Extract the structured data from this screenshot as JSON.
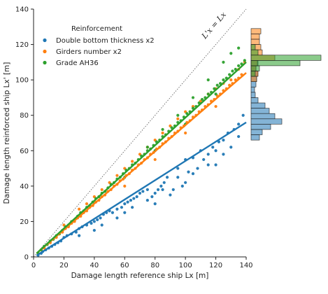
{
  "chart_data": {
    "type": "scatter",
    "xlabel": "Damage length reference ship Lx [m]",
    "ylabel": "Damage length reinforced ship Lx' [m]",
    "xlim": [
      0,
      140
    ],
    "ylim": [
      0,
      140
    ],
    "xticks": [
      "0",
      "20",
      "40",
      "60",
      "80",
      "100",
      "120",
      "140"
    ],
    "yticks": [
      "0",
      "20",
      "40",
      "60",
      "80",
      "100",
      "120",
      "140"
    ],
    "legend": {
      "title": "Reinforcement",
      "placement": "upper-left"
    },
    "annotation": "L'x = Lx",
    "identity_line": {
      "from": [
        0,
        0
      ],
      "to": [
        140,
        140
      ],
      "style": "dotted"
    },
    "series": [
      {
        "name": "Double bottom thickness x2",
        "color": "#1f77b4",
        "fit": [
          [
            2,
            0.8
          ],
          [
            140,
            76
          ]
        ],
        "points": [
          [
            3,
            1
          ],
          [
            5,
            2
          ],
          [
            6,
            3
          ],
          [
            8,
            4
          ],
          [
            10,
            5
          ],
          [
            12,
            6
          ],
          [
            14,
            7
          ],
          [
            16,
            8
          ],
          [
            18,
            9
          ],
          [
            20,
            11
          ],
          [
            22,
            12
          ],
          [
            25,
            13
          ],
          [
            28,
            14
          ],
          [
            30,
            16
          ],
          [
            32,
            17
          ],
          [
            35,
            18
          ],
          [
            38,
            19
          ],
          [
            40,
            20
          ],
          [
            42,
            21
          ],
          [
            44,
            22
          ],
          [
            46,
            24
          ],
          [
            48,
            25
          ],
          [
            50,
            26
          ],
          [
            52,
            25
          ],
          [
            55,
            27
          ],
          [
            58,
            28
          ],
          [
            60,
            30
          ],
          [
            62,
            31
          ],
          [
            64,
            32
          ],
          [
            66,
            33
          ],
          [
            68,
            34
          ],
          [
            70,
            36
          ],
          [
            72,
            37
          ],
          [
            75,
            38
          ],
          [
            78,
            34
          ],
          [
            80,
            36
          ],
          [
            82,
            38
          ],
          [
            84,
            40
          ],
          [
            86,
            42
          ],
          [
            88,
            45
          ],
          [
            90,
            35
          ],
          [
            92,
            38
          ],
          [
            95,
            50
          ],
          [
            98,
            40
          ],
          [
            100,
            55
          ],
          [
            102,
            48
          ],
          [
            105,
            56
          ],
          [
            108,
            50
          ],
          [
            110,
            60
          ],
          [
            112,
            55
          ],
          [
            115,
            58
          ],
          [
            118,
            62
          ],
          [
            120,
            60
          ],
          [
            122,
            65
          ],
          [
            125,
            66
          ],
          [
            128,
            70
          ],
          [
            130,
            62
          ],
          [
            132,
            72
          ],
          [
            135,
            68
          ],
          [
            138,
            80
          ],
          [
            45,
            18
          ],
          [
            55,
            22
          ],
          [
            65,
            28
          ],
          [
            75,
            32
          ],
          [
            85,
            38
          ],
          [
            95,
            45
          ],
          [
            105,
            47
          ],
          [
            115,
            52
          ],
          [
            125,
            58
          ],
          [
            135,
            75
          ],
          [
            30,
            12
          ],
          [
            40,
            15
          ],
          [
            60,
            25
          ],
          [
            80,
            30
          ],
          [
            100,
            42
          ],
          [
            120,
            52
          ]
        ],
        "histogram": [
          {
            "range": [
              66,
              69
            ],
            "count": 12
          },
          {
            "range": [
              69,
              72
            ],
            "count": 16
          },
          {
            "range": [
              72,
              75
            ],
            "count": 28
          },
          {
            "range": [
              75,
              78
            ],
            "count": 44
          },
          {
            "range": [
              78,
              81
            ],
            "count": 34
          },
          {
            "range": [
              81,
              84
            ],
            "count": 26
          },
          {
            "range": [
              84,
              87
            ],
            "count": 20
          },
          {
            "range": [
              87,
              90
            ],
            "count": 10
          },
          {
            "range": [
              90,
              93
            ],
            "count": 6
          },
          {
            "range": [
              93,
              96
            ],
            "count": 5
          },
          {
            "range": [
              96,
              99
            ],
            "count": 7
          },
          {
            "range": [
              99,
              102
            ],
            "count": 8
          },
          {
            "range": [
              102,
              105
            ],
            "count": 9
          },
          {
            "range": [
              105,
              108
            ],
            "count": 7
          },
          {
            "range": [
              108,
              111
            ],
            "count": 10
          }
        ]
      },
      {
        "name": "Girders number x2",
        "color": "#ff7f0e",
        "fit": [
          [
            2,
            2
          ],
          [
            140,
            104
          ]
        ],
        "points": [
          [
            3,
            2
          ],
          [
            5,
            4
          ],
          [
            7,
            5
          ],
          [
            9,
            7
          ],
          [
            11,
            8
          ],
          [
            13,
            10
          ],
          [
            15,
            11
          ],
          [
            17,
            13
          ],
          [
            19,
            14
          ],
          [
            21,
            16
          ],
          [
            23,
            17
          ],
          [
            25,
            19
          ],
          [
            27,
            20
          ],
          [
            29,
            22
          ],
          [
            31,
            23
          ],
          [
            33,
            25
          ],
          [
            35,
            26
          ],
          [
            37,
            28
          ],
          [
            39,
            29
          ],
          [
            41,
            31
          ],
          [
            43,
            32
          ],
          [
            45,
            34
          ],
          [
            47,
            35
          ],
          [
            49,
            37
          ],
          [
            51,
            38
          ],
          [
            53,
            40
          ],
          [
            55,
            41
          ],
          [
            57,
            43
          ],
          [
            59,
            44
          ],
          [
            61,
            46
          ],
          [
            63,
            47
          ],
          [
            65,
            49
          ],
          [
            67,
            50
          ],
          [
            69,
            52
          ],
          [
            71,
            53
          ],
          [
            73,
            55
          ],
          [
            75,
            56
          ],
          [
            77,
            58
          ],
          [
            79,
            59
          ],
          [
            81,
            61
          ],
          [
            83,
            62
          ],
          [
            85,
            64
          ],
          [
            87,
            65
          ],
          [
            89,
            67
          ],
          [
            91,
            68
          ],
          [
            93,
            70
          ],
          [
            95,
            71
          ],
          [
            97,
            73
          ],
          [
            99,
            74
          ],
          [
            101,
            76
          ],
          [
            103,
            77
          ],
          [
            105,
            79
          ],
          [
            107,
            80
          ],
          [
            109,
            82
          ],
          [
            111,
            83
          ],
          [
            113,
            85
          ],
          [
            115,
            86
          ],
          [
            117,
            88
          ],
          [
            119,
            89
          ],
          [
            121,
            91
          ],
          [
            123,
            92
          ],
          [
            125,
            94
          ],
          [
            127,
            95
          ],
          [
            129,
            97
          ],
          [
            131,
            98
          ],
          [
            133,
            100
          ],
          [
            135,
            101
          ],
          [
            137,
            103
          ],
          [
            139,
            110
          ],
          [
            20,
            18
          ],
          [
            30,
            27
          ],
          [
            40,
            34
          ],
          [
            50,
            42
          ],
          [
            60,
            50
          ],
          [
            70,
            58
          ],
          [
            80,
            66
          ],
          [
            90,
            74
          ],
          [
            100,
            82
          ],
          [
            110,
            88
          ],
          [
            120,
            95
          ],
          [
            130,
            100
          ],
          [
            35,
            30
          ],
          [
            45,
            38
          ],
          [
            55,
            46
          ],
          [
            65,
            54
          ],
          [
            75,
            62
          ],
          [
            85,
            70
          ],
          [
            95,
            78
          ],
          [
            105,
            85
          ],
          [
            115,
            92
          ],
          [
            125,
            98
          ],
          [
            135,
            106
          ],
          [
            60,
            40
          ],
          [
            80,
            55
          ],
          [
            100,
            70
          ],
          [
            120,
            85
          ]
        ],
        "histogram": [
          {
            "range": [
              99,
              102
            ],
            "count": 8
          },
          {
            "range": [
              102,
              105
            ],
            "count": 10
          },
          {
            "range": [
              105,
              108
            ],
            "count": 7
          },
          {
            "range": [
              108,
              111
            ],
            "count": 9
          },
          {
            "range": [
              111,
              114
            ],
            "count": 34
          },
          {
            "range": [
              114,
              117
            ],
            "count": 16
          },
          {
            "range": [
              117,
              120
            ],
            "count": 14
          },
          {
            "range": [
              120,
              123
            ],
            "count": 12
          },
          {
            "range": [
              123,
              126
            ],
            "count": 12
          },
          {
            "range": [
              126,
              129
            ],
            "count": 14
          }
        ]
      },
      {
        "name": "Grade AH36",
        "color": "#2ca02c",
        "fit": [
          [
            2,
            2
          ],
          [
            140,
            110
          ]
        ],
        "points": [
          [
            3,
            2
          ],
          [
            5,
            4
          ],
          [
            7,
            6
          ],
          [
            9,
            7
          ],
          [
            11,
            9
          ],
          [
            13,
            10
          ],
          [
            15,
            12
          ],
          [
            17,
            13
          ],
          [
            19,
            15
          ],
          [
            21,
            17
          ],
          [
            23,
            18
          ],
          [
            25,
            20
          ],
          [
            27,
            21
          ],
          [
            29,
            23
          ],
          [
            31,
            25
          ],
          [
            33,
            26
          ],
          [
            35,
            28
          ],
          [
            37,
            29
          ],
          [
            39,
            31
          ],
          [
            41,
            33
          ],
          [
            43,
            34
          ],
          [
            45,
            36
          ],
          [
            47,
            37
          ],
          [
            49,
            39
          ],
          [
            51,
            41
          ],
          [
            53,
            42
          ],
          [
            55,
            44
          ],
          [
            57,
            45
          ],
          [
            59,
            47
          ],
          [
            61,
            49
          ],
          [
            63,
            50
          ],
          [
            65,
            52
          ],
          [
            67,
            53
          ],
          [
            69,
            55
          ],
          [
            71,
            57
          ],
          [
            73,
            58
          ],
          [
            75,
            60
          ],
          [
            77,
            61
          ],
          [
            79,
            63
          ],
          [
            81,
            65
          ],
          [
            83,
            66
          ],
          [
            85,
            68
          ],
          [
            87,
            69
          ],
          [
            89,
            71
          ],
          [
            91,
            73
          ],
          [
            93,
            74
          ],
          [
            95,
            76
          ],
          [
            97,
            77
          ],
          [
            99,
            79
          ],
          [
            101,
            81
          ],
          [
            103,
            82
          ],
          [
            105,
            84
          ],
          [
            107,
            85
          ],
          [
            109,
            87
          ],
          [
            111,
            89
          ],
          [
            113,
            90
          ],
          [
            115,
            92
          ],
          [
            117,
            93
          ],
          [
            119,
            95
          ],
          [
            121,
            97
          ],
          [
            123,
            98
          ],
          [
            125,
            100
          ],
          [
            127,
            101
          ],
          [
            129,
            103
          ],
          [
            131,
            105
          ],
          [
            133,
            106
          ],
          [
            135,
            108
          ],
          [
            137,
            109
          ],
          [
            139,
            111
          ],
          [
            60,
            45
          ],
          [
            80,
            60
          ],
          [
            100,
            75
          ],
          [
            120,
            92
          ],
          [
            130,
            115
          ],
          [
            135,
            118
          ],
          [
            125,
            110
          ],
          [
            115,
            100
          ],
          [
            105,
            90
          ],
          [
            95,
            80
          ],
          [
            85,
            72
          ],
          [
            75,
            62
          ]
        ],
        "histogram": [
          {
            "range": [
              102,
              105
            ],
            "count": 6
          },
          {
            "range": [
              105,
              108
            ],
            "count": 12
          },
          {
            "range": [
              108,
              111
            ],
            "count": 70
          },
          {
            "range": [
              111,
              114
            ],
            "count": 100
          },
          {
            "range": [
              114,
              117
            ],
            "count": 10
          },
          {
            "range": [
              117,
              120
            ],
            "count": 6
          }
        ]
      }
    ]
  }
}
